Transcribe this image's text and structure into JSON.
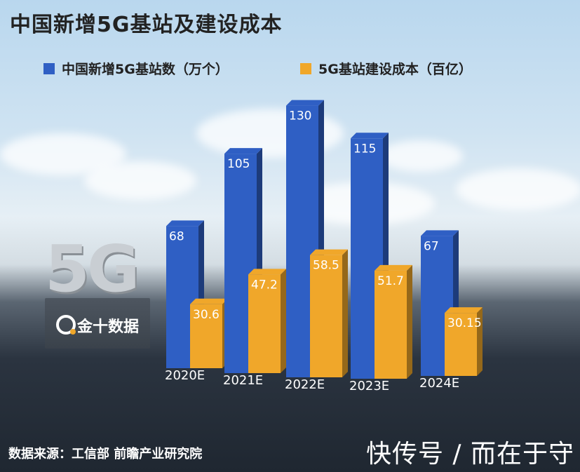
{
  "title": "中国新增5G基站及建设成本",
  "source": "数据来源：工信部 前瞻产业研究院",
  "watermark": "快传号 / 而在于守",
  "logo": {
    "big_text": "5G",
    "brand": "金十数据"
  },
  "colors": {
    "blue": "#2f5fc4",
    "orange": "#f0a72a"
  },
  "chart_data": {
    "type": "bar",
    "categories": [
      "2020E",
      "2021E",
      "2022E",
      "2023E",
      "2024E"
    ],
    "series": [
      {
        "name": "中国新增5G基站数（万个）",
        "values": [
          68,
          105,
          130,
          115,
          67
        ],
        "labels": [
          "68",
          "105",
          "130",
          "115",
          "67"
        ]
      },
      {
        "name": "5G基站建设成本（百亿）",
        "values": [
          30.6,
          47.2,
          58.5,
          51.7,
          30.15
        ],
        "labels": [
          "30.6",
          "47.2",
          "58.5",
          "51.7",
          "30.15"
        ]
      }
    ],
    "legend": "top-left"
  }
}
